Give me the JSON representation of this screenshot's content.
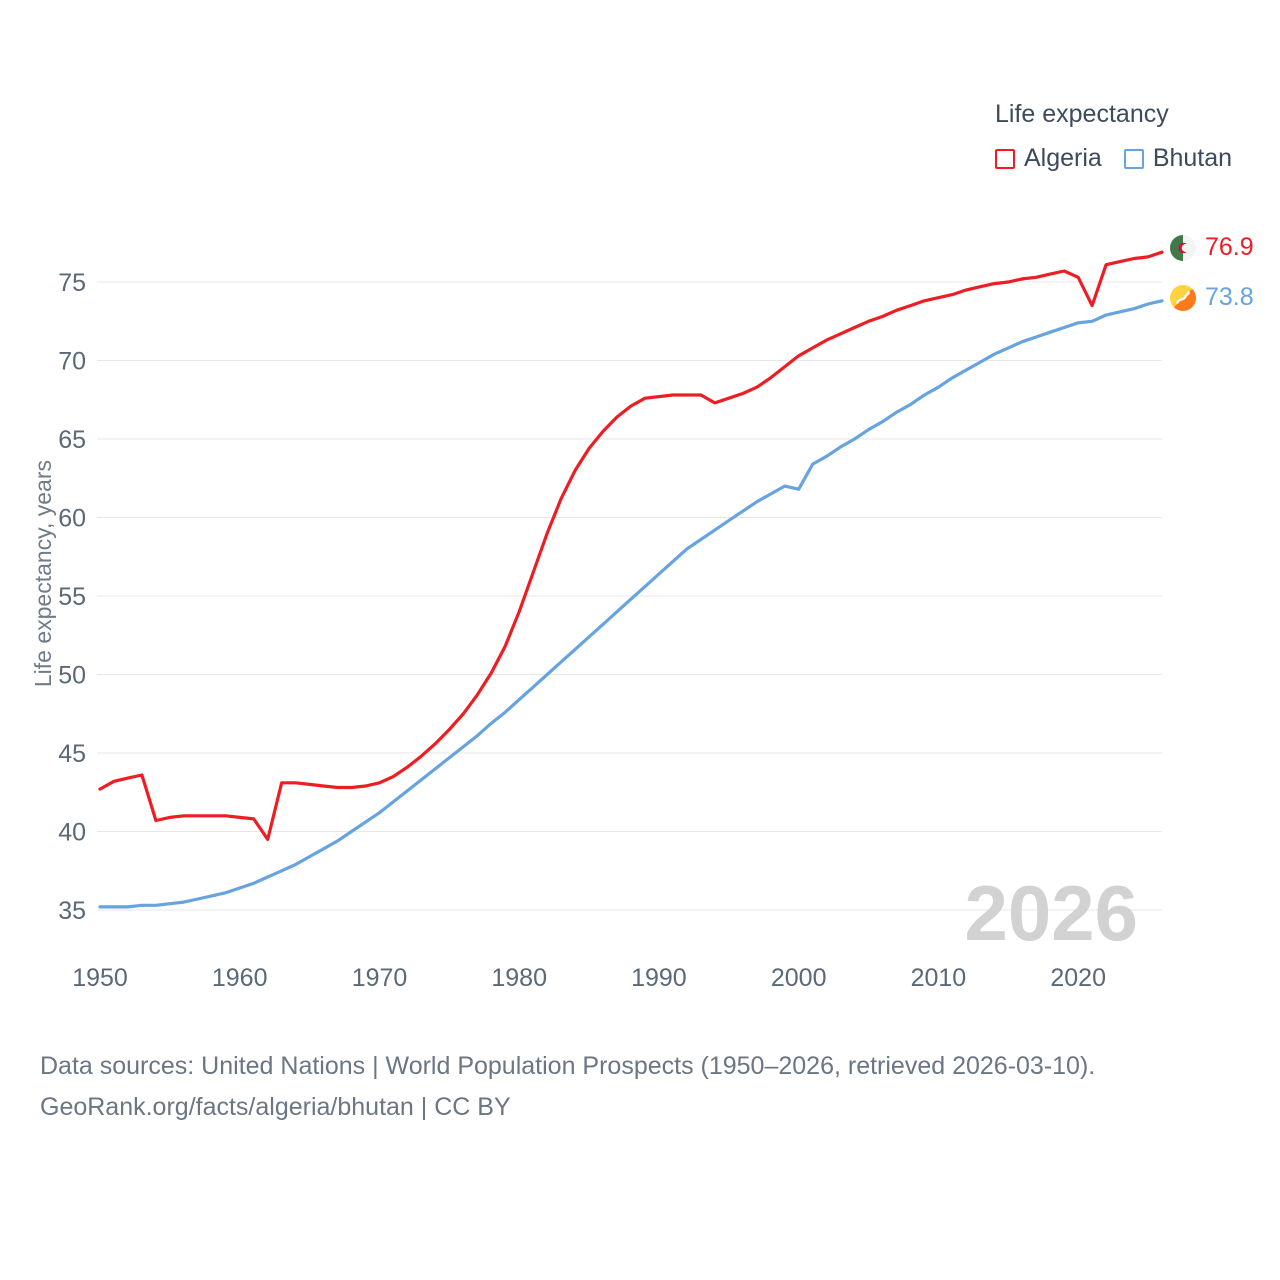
{
  "legend": {
    "title": "Life expectancy"
  },
  "chart_data": {
    "type": "line",
    "title": "Life expectancy",
    "xlabel": "",
    "ylabel": "Life expectancy, years",
    "x_range": [
      1950,
      2026
    ],
    "x_step": 1,
    "x_ticks": [
      1950,
      1960,
      1970,
      1980,
      1990,
      2000,
      2010,
      2020
    ],
    "y_ticks": [
      35,
      40,
      45,
      50,
      55,
      60,
      65,
      70,
      75
    ],
    "ylim": [
      35,
      75
    ],
    "grid": "horizontal",
    "legend_position": "top-right",
    "watermark": "2026",
    "series": [
      {
        "name": "Algeria",
        "color": "#ee1d23",
        "end_label": "76.9",
        "values": [
          42.7,
          43.2,
          43.4,
          43.6,
          40.7,
          40.9,
          41.0,
          41.0,
          41.0,
          41.0,
          40.9,
          40.8,
          39.5,
          43.1,
          43.1,
          43.0,
          42.9,
          42.8,
          42.8,
          42.9,
          43.1,
          43.5,
          44.1,
          44.8,
          45.6,
          46.5,
          47.5,
          48.7,
          50.1,
          51.8,
          54.0,
          56.5,
          59.0,
          61.2,
          63.0,
          64.4,
          65.5,
          66.4,
          67.1,
          67.6,
          67.7,
          67.8,
          67.8,
          67.8,
          67.3,
          67.6,
          67.9,
          68.3,
          68.9,
          69.6,
          70.3,
          70.8,
          71.3,
          71.7,
          72.1,
          72.5,
          72.8,
          73.2,
          73.5,
          73.8,
          74.0,
          74.2,
          74.5,
          74.7,
          74.9,
          75.0,
          75.2,
          75.3,
          75.5,
          75.7,
          75.3,
          73.5,
          76.1,
          76.3,
          76.5,
          76.6,
          76.9
        ]
      },
      {
        "name": "Bhutan",
        "color": "#66a3e0",
        "end_label": "73.8",
        "values": [
          35.2,
          35.2,
          35.2,
          35.3,
          35.3,
          35.4,
          35.5,
          35.7,
          35.9,
          36.1,
          36.4,
          36.7,
          37.1,
          37.5,
          37.9,
          38.4,
          38.9,
          39.4,
          40.0,
          40.6,
          41.2,
          41.9,
          42.6,
          43.3,
          44.0,
          44.7,
          45.4,
          46.1,
          46.9,
          47.6,
          48.4,
          49.2,
          50.0,
          50.8,
          51.6,
          52.4,
          53.2,
          54.0,
          54.8,
          55.6,
          56.4,
          57.2,
          58.0,
          58.6,
          59.2,
          59.8,
          60.4,
          61.0,
          61.5,
          62.0,
          61.8,
          63.4,
          63.9,
          64.5,
          65.0,
          65.6,
          66.1,
          66.7,
          67.2,
          67.8,
          68.3,
          68.9,
          69.4,
          69.9,
          70.4,
          70.8,
          71.2,
          71.5,
          71.8,
          72.1,
          72.4,
          72.5,
          72.9,
          73.1,
          73.3,
          73.6,
          73.8
        ]
      }
    ]
  },
  "footer": {
    "line1": "Data sources: United Nations | World Population Prospects (1950–2026, retrieved 2026-03-10).",
    "line2": "GeoRank.org/facts/algeria/bhutan | CC BY"
  }
}
